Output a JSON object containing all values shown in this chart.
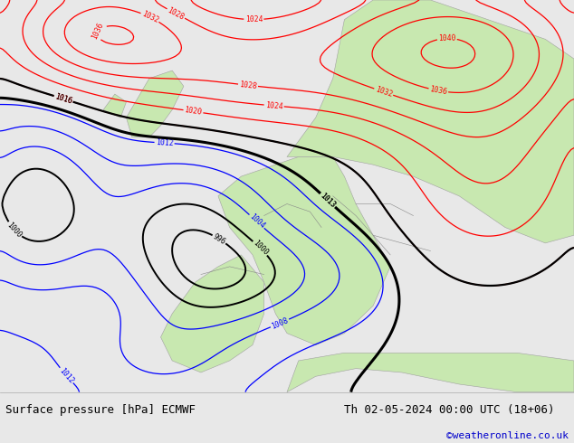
{
  "title_left": "Surface pressure [hPa] ECMWF",
  "title_right": "Th 02-05-2024 00:00 UTC (18+06)",
  "copyright": "©weatheronline.co.uk",
  "ocean_color": "#e8e8e8",
  "land_color": "#c8e8b0",
  "bottom_bar_color": "#e8e8e8",
  "bottom_text_color": "#000000",
  "copyright_color": "#0000cc",
  "font_family": "monospace",
  "red_lw": 0.9,
  "blue_lw": 0.9,
  "black_lw_thin": 1.4,
  "black_lw_thick": 2.2
}
